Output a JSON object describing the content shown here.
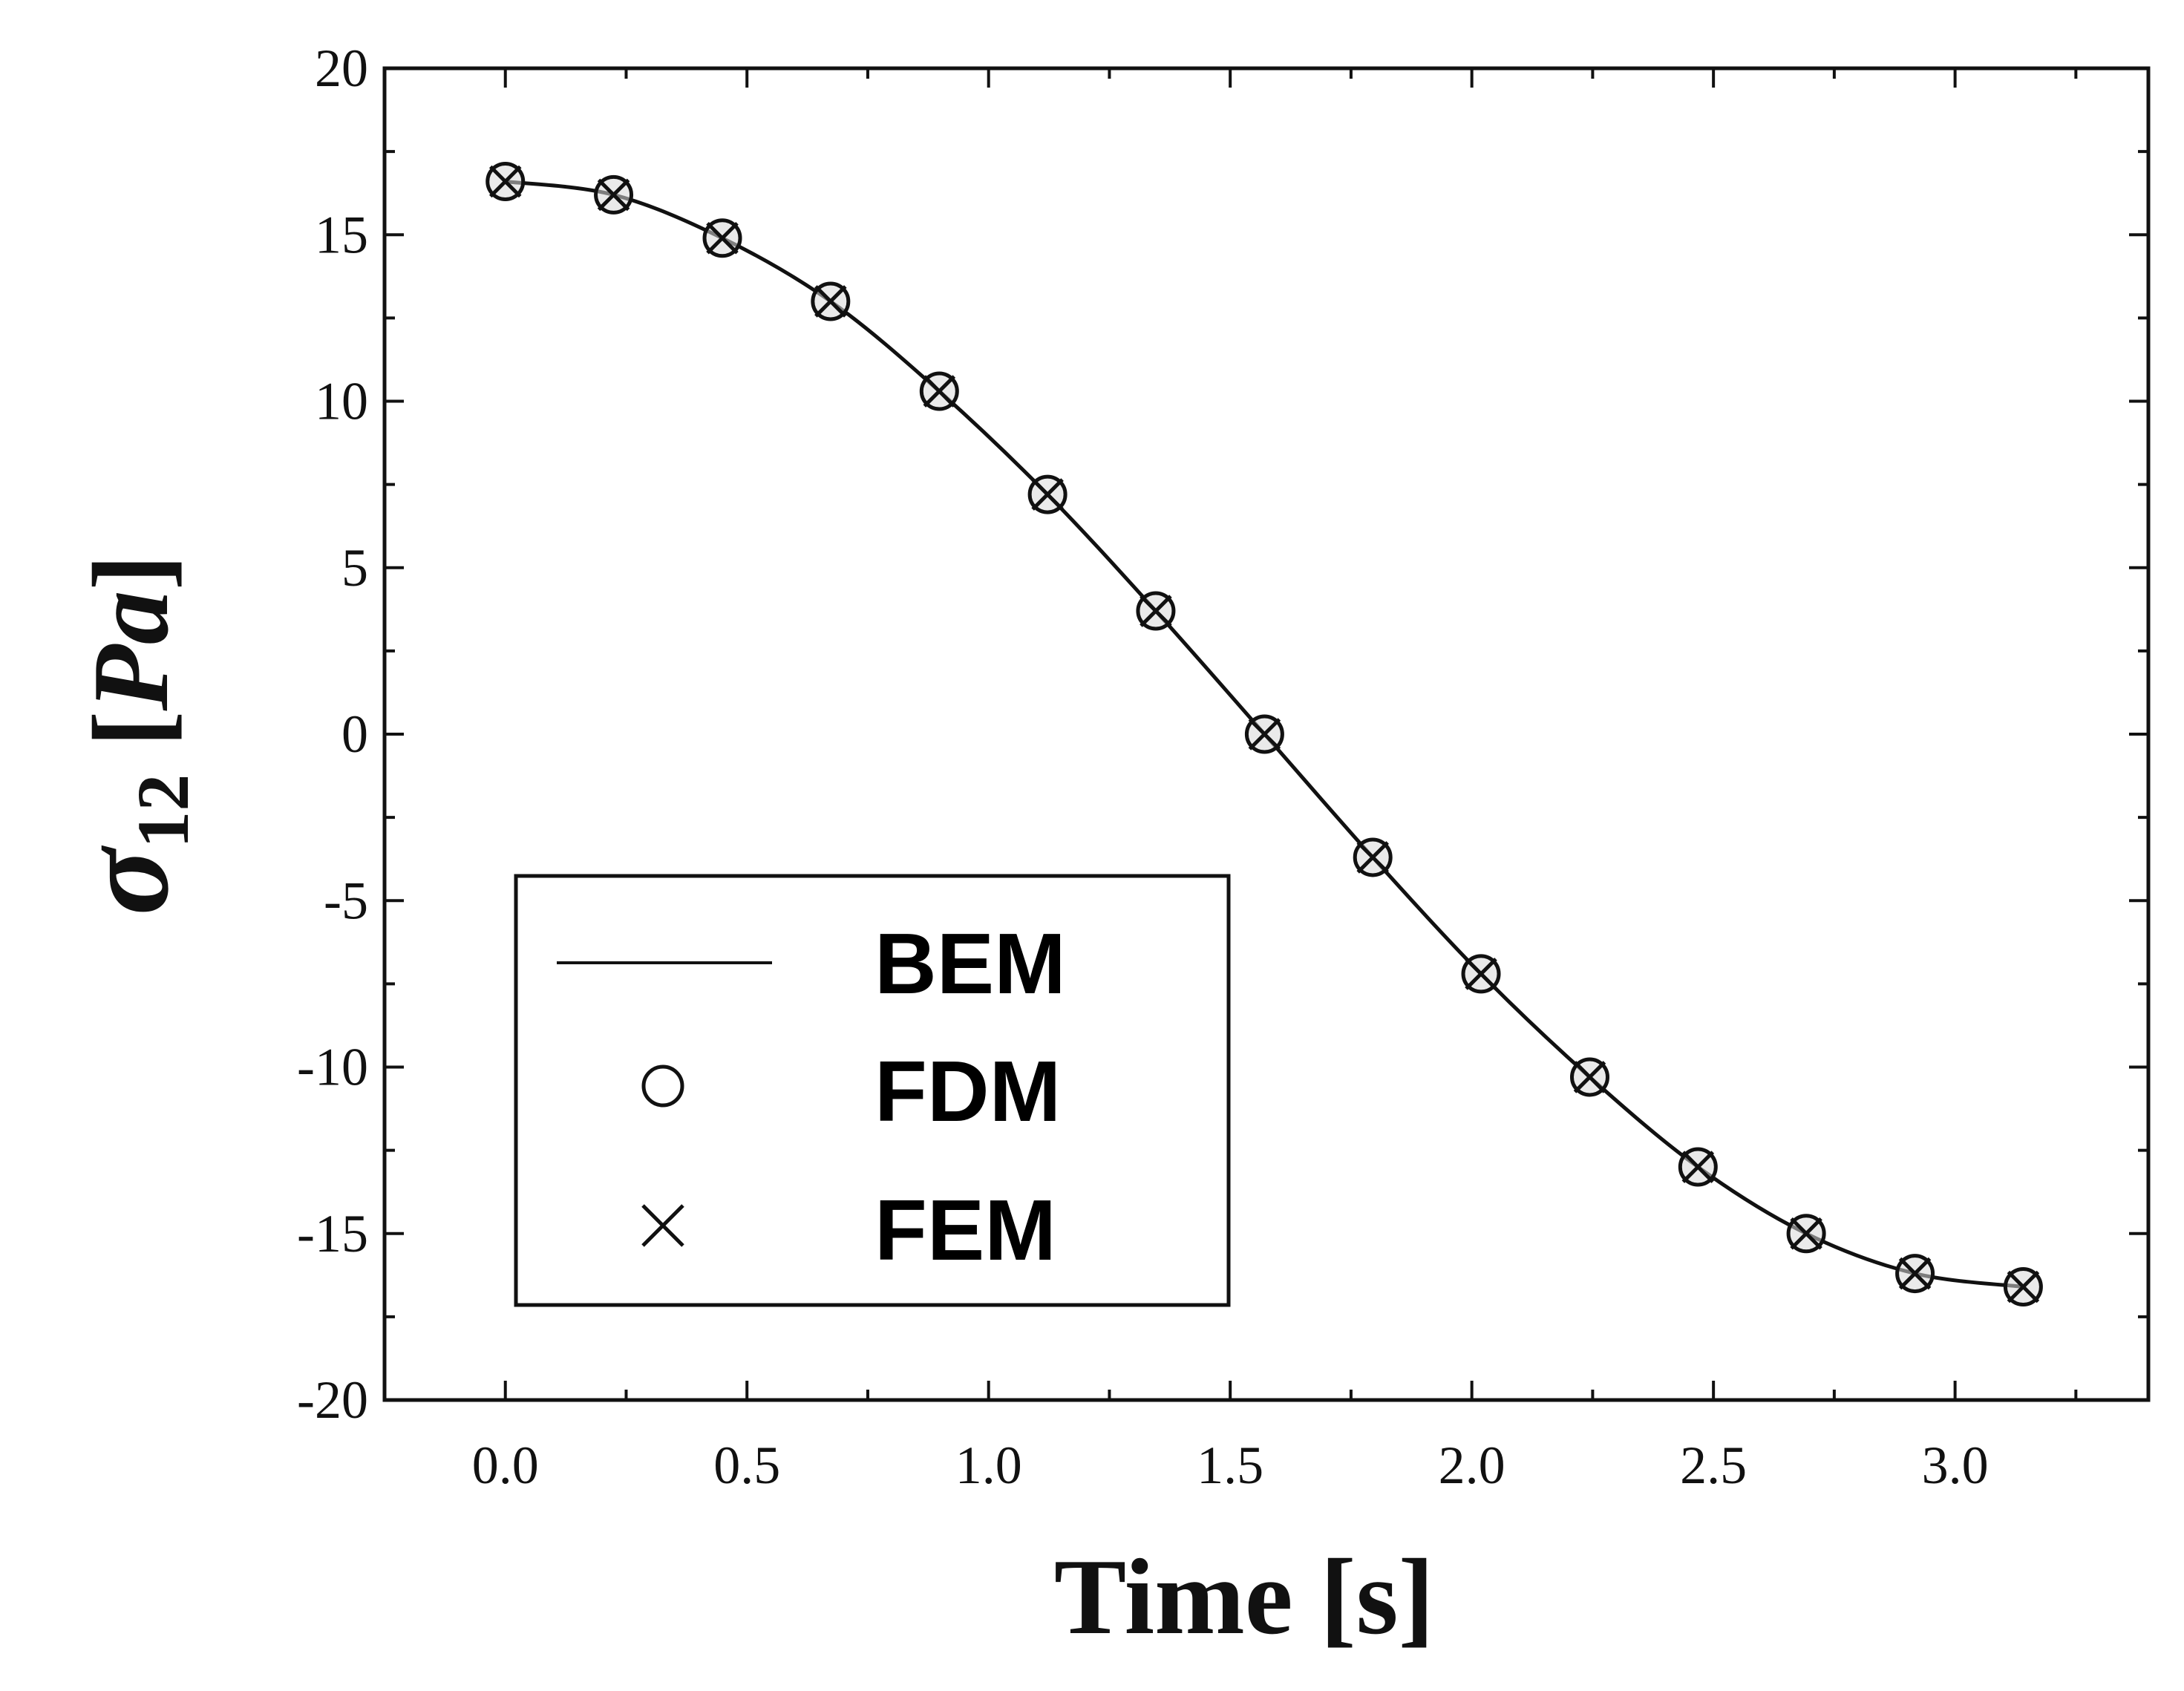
{
  "chart_data": {
    "type": "line",
    "xlabel": "Time [s]",
    "ylabel": {
      "symbol": "σ",
      "subscript": "12",
      "unit_open": " [",
      "unit": "Pa",
      "unit_close": "]"
    },
    "xlim": [
      -0.25,
      3.4
    ],
    "ylim": [
      -20,
      20
    ],
    "x_ticks": [
      "0.0",
      "0.5",
      "1.0",
      "1.5",
      "2.0",
      "2.5",
      "3.0"
    ],
    "y_ticks": [
      "20",
      "15",
      "10",
      "5",
      "0",
      "-5",
      "-10",
      "-15",
      "-20"
    ],
    "grid": false,
    "legend_position": "lower-left",
    "series": [
      {
        "name": "BEM",
        "style": "line",
        "color": "#111111",
        "x": [
          0.0,
          0.224,
          0.449,
          0.673,
          0.898,
          1.122,
          1.346,
          1.571,
          1.795,
          2.019,
          2.244,
          2.468,
          2.692,
          2.917,
          3.141
        ],
        "y": [
          16.6,
          16.2,
          14.9,
          13.0,
          10.3,
          7.2,
          3.7,
          0.0,
          -3.7,
          -7.2,
          -10.3,
          -13.0,
          -15.0,
          -16.2,
          -16.6
        ]
      },
      {
        "name": "FDM",
        "style": "circle",
        "color": "#111111",
        "x": [
          0.0,
          0.224,
          0.449,
          0.673,
          0.898,
          1.122,
          1.346,
          1.571,
          1.795,
          2.019,
          2.244,
          2.468,
          2.692,
          2.917,
          3.141
        ],
        "y": [
          16.6,
          16.2,
          14.9,
          13.0,
          10.3,
          7.2,
          3.7,
          0.0,
          -3.7,
          -7.2,
          -10.3,
          -13.0,
          -15.0,
          -16.2,
          -16.6
        ]
      },
      {
        "name": "FEM",
        "style": "cross",
        "color": "#111111",
        "x": [
          0.0,
          0.224,
          0.449,
          0.673,
          0.898,
          1.122,
          1.346,
          1.571,
          1.795,
          2.019,
          2.244,
          2.468,
          2.692,
          2.917,
          3.141
        ],
        "y": [
          16.6,
          16.2,
          14.9,
          13.0,
          10.3,
          7.2,
          3.7,
          0.0,
          -3.7,
          -7.2,
          -10.3,
          -13.0,
          -15.0,
          -16.2,
          -16.6
        ]
      }
    ]
  }
}
